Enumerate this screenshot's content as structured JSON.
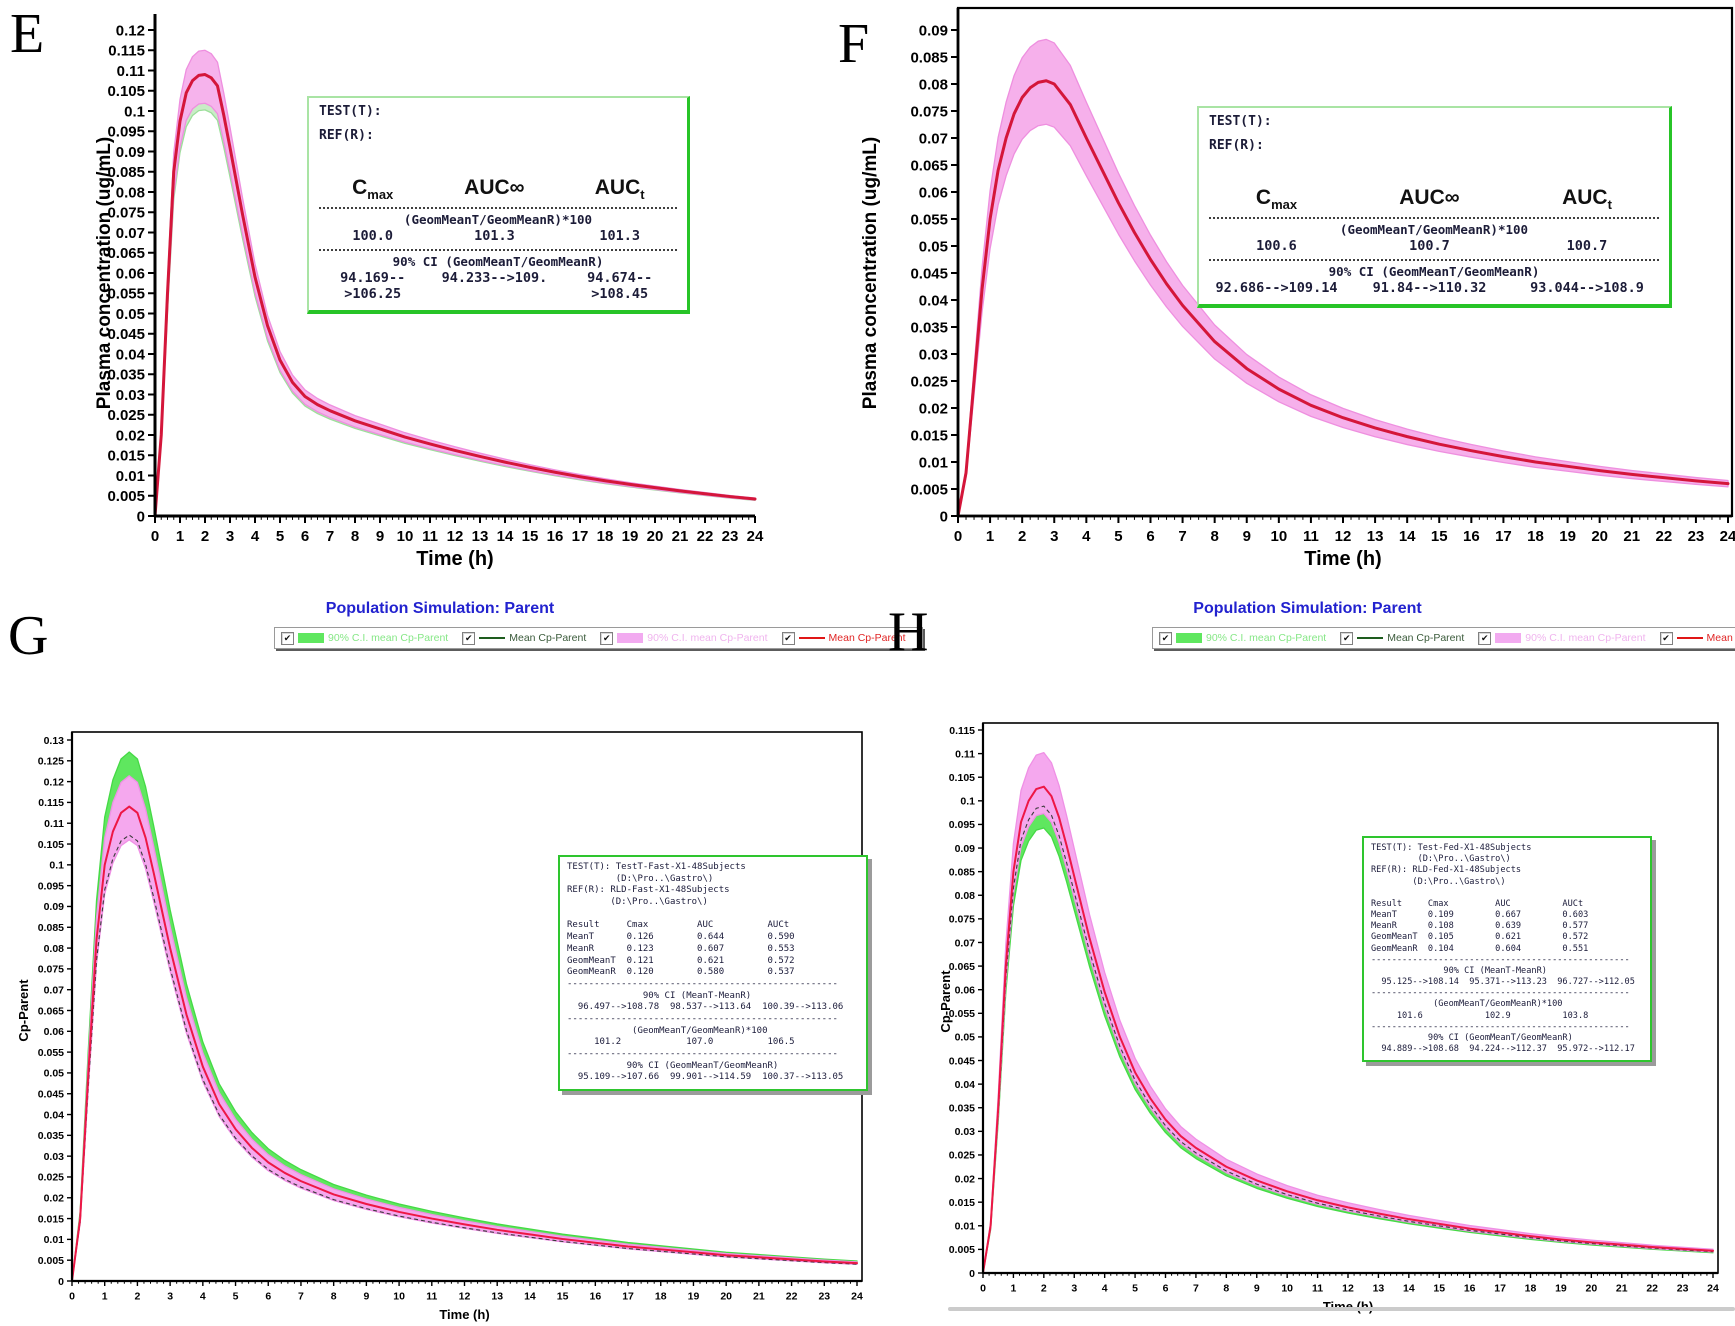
{
  "page": {
    "background": "#ffffff"
  },
  "chart_data": [
    {
      "id": "E",
      "panel_label": "E",
      "type": "area",
      "title": "",
      "xlabel": "Time (h)",
      "ylabel": "Plasma concentration (ug/mL)",
      "xlim": [
        0,
        24
      ],
      "ylim": [
        0,
        0.12
      ],
      "x_tick_step": 1,
      "y_tick_step": 0.005,
      "grid": false,
      "x": [
        0,
        0.25,
        0.5,
        0.75,
        1,
        1.25,
        1.5,
        1.75,
        2,
        2.25,
        2.5,
        2.75,
        3,
        3.5,
        4,
        4.5,
        5,
        5.5,
        6,
        6.5,
        7,
        8,
        9,
        10,
        11,
        12,
        13,
        14,
        15,
        16,
        17,
        18,
        19,
        20,
        21,
        22,
        23,
        24
      ],
      "mean_values": [
        0,
        0.02,
        0.055,
        0.085,
        0.0975,
        0.1045,
        0.1075,
        0.1088,
        0.109,
        0.1082,
        0.1062,
        0.099,
        0.091,
        0.0745,
        0.059,
        0.047,
        0.0385,
        0.033,
        0.0295,
        0.0275,
        0.026,
        0.0235,
        0.0215,
        0.0195,
        0.0178,
        0.0162,
        0.0147,
        0.0133,
        0.012,
        0.0108,
        0.0097,
        0.0087,
        0.0078,
        0.007,
        0.0062,
        0.0055,
        0.0048,
        0.0042
      ],
      "series": [
        {
          "kind": "band",
          "name": "90% C.I. band (green)",
          "lower_ratio": 0.92,
          "upper_ratio": 1.045,
          "color": "#c9ecc6",
          "edge": "#9cdf9a"
        },
        {
          "kind": "band",
          "name": "90% C.I. band (pink)",
          "lower_ratio": 0.935,
          "upper_ratio": 1.055,
          "color": "#f6b3ec",
          "edge": "#ee8fdf"
        },
        {
          "kind": "line",
          "name": "Mean plasma concentration",
          "color": "#d4163a"
        }
      ],
      "inset": {
        "test_label": "TEST(T):",
        "ref_label": "REF(R):",
        "col_headers": [
          {
            "base": "C",
            "sub": "max"
          },
          {
            "base": "AUC∞",
            "sub": ""
          },
          {
            "base": "AUC",
            "sub": "t"
          }
        ],
        "ratio_heading": "(GeomMeanT/GeomMeanR)*100",
        "ratio_values": [
          "100.0",
          "101.3",
          "101.3"
        ],
        "ci_heading": "90% CI (GeomMeanT/GeomMeanR)",
        "ci_values": [
          "94.169-->106.25",
          "94.233-->109.",
          "94.674-->108.45"
        ]
      }
    },
    {
      "id": "F",
      "panel_label": "F",
      "type": "area",
      "title": "",
      "xlabel": "Time (h)",
      "ylabel": "Plasma concentration (ug/mL)",
      "xlim": [
        0,
        24
      ],
      "ylim": [
        0,
        0.09
      ],
      "x_tick_step": 1,
      "y_tick_step": 0.005,
      "grid": false,
      "x": [
        0,
        0.25,
        0.5,
        0.75,
        1,
        1.25,
        1.5,
        1.75,
        2,
        2.25,
        2.5,
        2.75,
        3,
        3.5,
        4,
        4.5,
        5,
        5.5,
        6,
        6.5,
        7,
        8,
        9,
        10,
        11,
        12,
        13,
        14,
        15,
        16,
        17,
        18,
        19,
        20,
        21,
        22,
        23,
        24
      ],
      "mean_values": [
        0,
        0.008,
        0.025,
        0.042,
        0.055,
        0.064,
        0.07,
        0.0745,
        0.0775,
        0.0793,
        0.0803,
        0.0806,
        0.08,
        0.0762,
        0.07,
        0.064,
        0.058,
        0.0525,
        0.0475,
        0.043,
        0.039,
        0.0323,
        0.0273,
        0.0235,
        0.0205,
        0.0182,
        0.0163,
        0.0147,
        0.0133,
        0.0121,
        0.011,
        0.01,
        0.0092,
        0.0084,
        0.0077,
        0.0071,
        0.0065,
        0.006
      ],
      "series": [
        {
          "kind": "band",
          "name": "90% C.I. band (green)",
          "lower_ratio": 0.93,
          "upper_ratio": 1.06,
          "color": "#cfeecb",
          "edge": "#a6e2a2"
        },
        {
          "kind": "band",
          "name": "90% C.I. band (pink)",
          "lower_ratio": 0.9,
          "upper_ratio": 1.095,
          "color": "#f6b0eb",
          "edge": "#ee8fdf"
        },
        {
          "kind": "line",
          "name": "Mean plasma concentration",
          "color": "#d4163a"
        }
      ],
      "inset": {
        "test_label": "TEST(T):",
        "ref_label": "REF(R):",
        "col_headers": [
          {
            "base": "C",
            "sub": "max"
          },
          {
            "base": "AUC∞",
            "sub": ""
          },
          {
            "base": "AUC",
            "sub": "t"
          }
        ],
        "ratio_heading": "(GeomMeanT/GeomMeanR)*100",
        "ratio_values": [
          "100.6",
          "100.7",
          "100.7"
        ],
        "ci_heading": "90% CI (GeomMeanT/GeomMeanR)",
        "ci_values": [
          "92.686-->109.14",
          "91.84-->110.32",
          "93.044-->108.9"
        ]
      }
    },
    {
      "id": "G",
      "panel_label": "G",
      "type": "area",
      "title": "Population Simulation: Parent",
      "title_color": "#2222cf",
      "xlabel": "Time (h)",
      "ylabel": "Cp-Parent",
      "xlim": [
        0,
        24
      ],
      "ylim": [
        0,
        0.13
      ],
      "x_tick_step": 1,
      "y_tick_step": 0.005,
      "grid": false,
      "x": [
        0,
        0.25,
        0.5,
        0.75,
        1,
        1.25,
        1.5,
        1.75,
        2,
        2.25,
        2.5,
        2.75,
        3,
        3.5,
        4,
        4.5,
        5,
        5.5,
        6,
        6.5,
        7,
        8,
        9,
        10,
        11,
        12,
        13,
        14,
        15,
        16,
        17,
        18,
        19,
        20,
        21,
        22,
        23,
        24
      ],
      "mean_values": [
        0,
        0.015,
        0.05,
        0.082,
        0.1,
        0.108,
        0.1125,
        0.114,
        0.1125,
        0.1065,
        0.098,
        0.089,
        0.08,
        0.064,
        0.0515,
        0.0425,
        0.0365,
        0.032,
        0.0285,
        0.026,
        0.024,
        0.0208,
        0.0185,
        0.0166,
        0.015,
        0.0136,
        0.0123,
        0.0112,
        0.0101,
        0.0092,
        0.0083,
        0.0076,
        0.0069,
        0.0062,
        0.0057,
        0.0052,
        0.0047,
        0.0043
      ],
      "series": [
        {
          "kind": "band",
          "name": "90% C.I. mean Cp-Parent (test)",
          "lower_ratio": 0.965,
          "upper_ratio": 1.115,
          "color": "#5fe75f",
          "edge": "#45d945"
        },
        {
          "kind": "band",
          "name": "90% C.I. mean Cp-Parent (ref)",
          "lower_ratio": 0.93,
          "upper_ratio": 1.065,
          "color": "#f5a8ee",
          "edge": "#ef90e5"
        },
        {
          "kind": "ref-line",
          "name": "Mean Cp-Parent (ref)",
          "ratio": 0.94,
          "color": "#3a3a3a",
          "dash": "4 3"
        },
        {
          "kind": "line",
          "name": "Mean Cp-Parent",
          "color": "#ed1745"
        }
      ],
      "legend": {
        "items": [
          {
            "label": "90% C.I. mean Cp-Parent",
            "swatch": "fill",
            "color": "#5fe75f",
            "label_color": "#86e786"
          },
          {
            "label": "Mean Cp-Parent",
            "swatch": "line",
            "color": "#1e5c1e",
            "label_color": "#3a5a3a"
          },
          {
            "label": "90% C.I. mean Cp-Parent",
            "swatch": "fill",
            "color": "#f2aaf0",
            "label_color": "#f0b4ee"
          },
          {
            "label": "Mean Cp-Parent",
            "swatch": "line",
            "color": "#e01616",
            "label_color": "#e02525"
          }
        ]
      },
      "inset_text": [
        "TEST(T): TestT-Fast-X1-48Subjects",
        "         (D:\\Pro..\\Gastro\\)",
        "REF(R): RLD-Fast-X1-48Subjects",
        "        (D:\\Pro..\\Gastro\\)",
        "",
        "Result     Cmax         AUC          AUCt",
        "MeanT      0.126        0.644        0.590",
        "MeanR      0.123        0.607        0.553",
        "GeomMeanT  0.121        0.621        0.572",
        "GeomMeanR  0.120        0.580        0.537",
        "--------------------------------------------------",
        "              90% CI (MeanT-MeanR)",
        "  96.497-->108.78  98.537-->113.64  100.39-->113.06",
        "--------------------------------------------------",
        "            (GeomMeanT/GeomMeanR)*100",
        "     101.2            107.0          106.5",
        "--------------------------------------------------",
        "           90% CI (GeomMeanT/GeomMeanR)",
        "  95.109-->107.66  99.901-->114.59  100.37-->113.05"
      ]
    },
    {
      "id": "H",
      "panel_label": "H",
      "type": "area",
      "title": "Population Simulation: Parent",
      "title_color": "#2222cf",
      "xlabel": "Time (h)",
      "ylabel": "Cp-Parent",
      "xlim": [
        0,
        24
      ],
      "ylim": [
        0,
        0.115
      ],
      "x_tick_step": 1,
      "y_tick_step": 0.005,
      "grid": false,
      "x": [
        0,
        0.25,
        0.5,
        0.75,
        1,
        1.25,
        1.5,
        1.75,
        2,
        2.25,
        2.5,
        2.75,
        3,
        3.5,
        4,
        4.5,
        5,
        5.5,
        6,
        6.5,
        7,
        8,
        9,
        10,
        11,
        12,
        13,
        14,
        15,
        16,
        17,
        18,
        19,
        20,
        21,
        22,
        23,
        24
      ],
      "mean_values": [
        0,
        0.01,
        0.035,
        0.065,
        0.085,
        0.0955,
        0.1,
        0.1025,
        0.103,
        0.101,
        0.0965,
        0.0905,
        0.084,
        0.071,
        0.0595,
        0.05,
        0.0425,
        0.037,
        0.0325,
        0.029,
        0.0265,
        0.0225,
        0.0196,
        0.0173,
        0.0154,
        0.0139,
        0.0126,
        0.0114,
        0.0104,
        0.0094,
        0.0086,
        0.0078,
        0.0071,
        0.0065,
        0.006,
        0.0055,
        0.0051,
        0.0047
      ],
      "series": [
        {
          "kind": "band",
          "name": "90% C.I. mean Cp-Parent (test)",
          "lower_ratio": 0.915,
          "upper_ratio": 1.035,
          "color": "#5fe75f",
          "edge": "#45d945"
        },
        {
          "kind": "band",
          "name": "90% C.I. mean Cp-Parent (ref)",
          "lower_ratio": 0.945,
          "upper_ratio": 1.07,
          "color": "#f5a8ee",
          "edge": "#ef90e5"
        },
        {
          "kind": "ref-line",
          "name": "Mean Cp-Parent (ref)",
          "ratio": 0.96,
          "color": "#3a3a3a",
          "dash": "4 3"
        },
        {
          "kind": "line",
          "name": "Mean Cp-Parent",
          "color": "#ed1745"
        }
      ],
      "legend": {
        "items": [
          {
            "label": "90% C.I. mean Cp-Parent",
            "swatch": "fill",
            "color": "#5fe75f",
            "label_color": "#86e786"
          },
          {
            "label": "Mean Cp-Parent",
            "swatch": "line",
            "color": "#1e5c1e",
            "label_color": "#3a5a3a"
          },
          {
            "label": "90% C.I. mean Cp-Parent",
            "swatch": "fill",
            "color": "#f2aaf0",
            "label_color": "#f0b4ee"
          },
          {
            "label": "Mean Cp-Parent",
            "swatch": "line",
            "color": "#e01616",
            "label_color": "#e02525"
          }
        ]
      },
      "inset_text": [
        "TEST(T): Test-Fed-X1-48Subjects",
        "         (D:\\Pro..\\Gastro\\)",
        "REF(R): RLD-Fed-X1-48Subjects",
        "        (D:\\Pro..\\Gastro\\)",
        "",
        "Result     Cmax         AUC          AUCt",
        "MeanT      0.109        0.667        0.603",
        "MeanR      0.108        0.639        0.577",
        "GeomMeanT  0.105        0.621        0.572",
        "GeomMeanR  0.104        0.604        0.551",
        "--------------------------------------------------",
        "              90% CI (MeanT-MeanR)",
        "  95.125-->108.14  95.371-->113.23  96.727-->112.05",
        "--------------------------------------------------",
        "            (GeomMeanT/GeomMeanR)*100",
        "     101.6            102.9          103.8",
        "--------------------------------------------------",
        "           90% CI (GeomMeanT/GeomMeanR)",
        "  94.889-->108.68  94.224-->112.37  95.972-->112.17"
      ]
    }
  ]
}
